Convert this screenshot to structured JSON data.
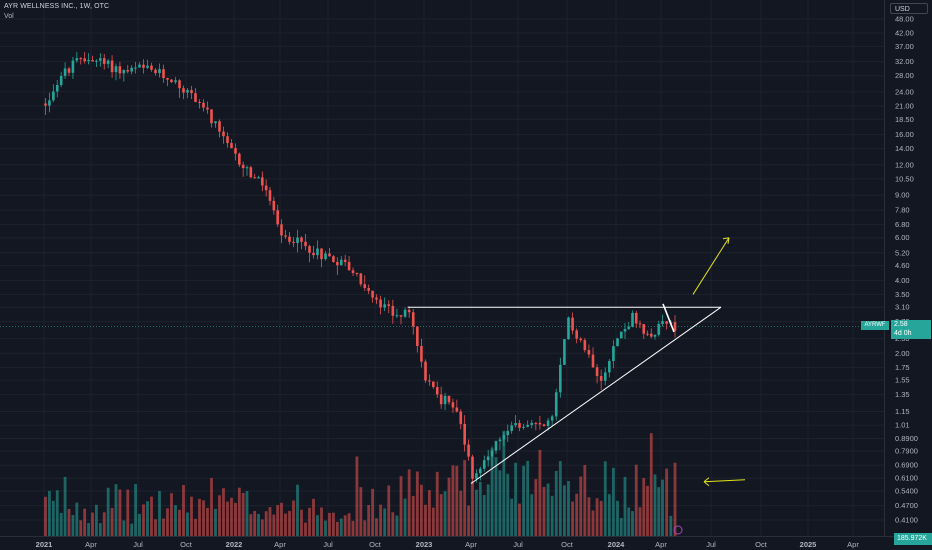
{
  "header": {
    "symbol_line": "AYR WELLNESS INC., 1W, OTC",
    "volume_label": "Vol",
    "currency": "USD"
  },
  "badges": {
    "symbol": "AYRWF",
    "price": "2.58",
    "countdown": "4d 0h",
    "volume": "185.972K"
  },
  "colors": {
    "background": "#131722",
    "up": "#26a69a",
    "down": "#ef5350",
    "drawing_white": "#ffffff",
    "drawing_yellow": "#e3e31b"
  },
  "chart_data": {
    "type": "candlestick",
    "scale": "log",
    "y_ticks": [
      "48.00",
      "42.00",
      "37.00",
      "32.00",
      "28.00",
      "24.00",
      "21.00",
      "18.50",
      "16.00",
      "14.00",
      "12.00",
      "10.50",
      "9.00",
      "7.80",
      "6.80",
      "6.00",
      "5.20",
      "4.60",
      "4.00",
      "3.50",
      "3.10",
      "2.70",
      "2.30",
      "2.00",
      "1.75",
      "1.55",
      "1.35",
      "1.15",
      "1.01",
      "0.8900",
      "0.7900",
      "0.6900",
      "0.6100",
      "0.5400",
      "0.4700",
      "0.4100"
    ],
    "x_ticks": [
      "2021",
      "Apr",
      "Jul",
      "Oct",
      "2022",
      "Apr",
      "Jul",
      "Oct",
      "2023",
      "Apr",
      "Jul",
      "Oct",
      "2024",
      "Apr",
      "Jul",
      "Oct",
      "2025",
      "Apr"
    ],
    "x_tick_dates": [
      "2021-01",
      "2021-04",
      "2021-07",
      "2021-10",
      "2022-01",
      "2022-04",
      "2022-07",
      "2022-10",
      "2023-01",
      "2023-04",
      "2023-07",
      "2023-10",
      "2024-01",
      "2024-04",
      "2024-07",
      "2024-10",
      "2025-01",
      "2025-04"
    ],
    "price_path": [
      [
        "2021-01",
        21.5
      ],
      [
        "2021-02",
        28
      ],
      [
        "2021-03",
        32
      ],
      [
        "2021-04",
        33
      ],
      [
        "2021-05",
        31
      ],
      [
        "2021-06",
        29
      ],
      [
        "2021-07",
        30
      ],
      [
        "2021-08",
        29
      ],
      [
        "2021-09",
        27
      ],
      [
        "2021-10",
        24
      ],
      [
        "2021-11",
        21
      ],
      [
        "2021-12",
        16
      ],
      [
        "2022-01",
        13
      ],
      [
        "2022-02",
        11
      ],
      [
        "2022-03",
        9.5
      ],
      [
        "2022-04",
        6.0
      ],
      [
        "2022-05",
        5.8
      ],
      [
        "2022-06",
        5.3
      ],
      [
        "2022-07",
        5.0
      ],
      [
        "2022-08",
        4.7
      ],
      [
        "2022-09",
        4.0
      ],
      [
        "2022-10",
        3.2
      ],
      [
        "2022-11",
        3.0
      ],
      [
        "2022-12",
        2.9
      ],
      [
        "2023-01",
        1.6
      ],
      [
        "2023-02",
        1.3
      ],
      [
        "2023-03",
        1.2
      ],
      [
        "2023-04",
        0.62
      ],
      [
        "2023-05",
        0.75
      ],
      [
        "2023-06",
        0.95
      ],
      [
        "2023-07",
        1.0
      ],
      [
        "2023-08",
        1.0
      ],
      [
        "2023-09",
        1.05
      ],
      [
        "2023-10",
        2.8
      ],
      [
        "2023-11",
        2.1
      ],
      [
        "2023-12",
        1.6
      ],
      [
        "2024-01",
        2.3
      ],
      [
        "2024-02",
        2.8
      ],
      [
        "2024-03",
        2.3
      ],
      [
        "2024-04",
        2.6
      ],
      [
        "2024-05",
        2.58
      ]
    ],
    "volume_series": {
      "name": "Vol",
      "last_value": "185.972K"
    },
    "drawings": [
      {
        "type": "horizontal-resistance",
        "price": 3.1,
        "from": "2022-12",
        "to": "2024-07"
      },
      {
        "type": "ascending-trendline",
        "from": [
          "2023-04",
          0.58
        ],
        "to": [
          "2024-07",
          3.1
        ]
      },
      {
        "type": "arrow-up",
        "color": "yellow"
      },
      {
        "type": "arrow-left",
        "color": "yellow"
      }
    ]
  }
}
